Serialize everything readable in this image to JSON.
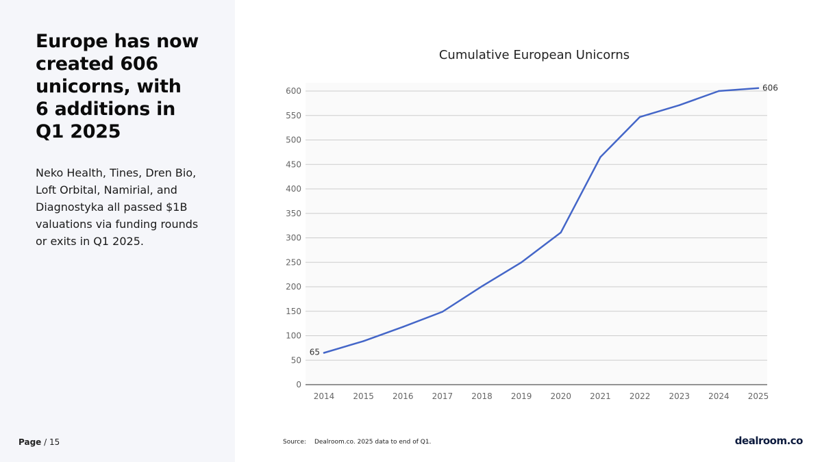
{
  "headline": "Europe has now created 606 unicorns, with 6 additions in Q1 2025",
  "body": "Neko Health, Tines, Dren Bio, Loft Orbital, Namirial, and Diagnostyka all passed $1B valuations via funding rounds or exits in Q1 2025.",
  "footer": {
    "page_word": "Page",
    "page_rest": " / 15",
    "source_label": "Source:",
    "source_text": "Dealroom.co. 2025 data to end of Q1.",
    "logo": "dealroom.co"
  },
  "colors": {
    "line": "#4466c8",
    "grid": "#cccccc",
    "axis": "#555555",
    "panel": "#f5f6fa"
  },
  "chart_data": {
    "type": "line",
    "title": "Cumulative European Unicorns",
    "x": [
      "2014",
      "2015",
      "2016",
      "2017",
      "2018",
      "2019",
      "2020",
      "2021",
      "2022",
      "2023",
      "2024",
      "2025"
    ],
    "series": [
      {
        "values": [
          65,
          89,
          118,
          149,
          201,
          250,
          311,
          465,
          547,
          571,
          600,
          606
        ]
      }
    ],
    "ylim": [
      0,
      600
    ],
    "yticks": [
      0,
      50,
      100,
      150,
      200,
      250,
      300,
      350,
      400,
      450,
      500,
      550,
      600
    ],
    "data_labels": [
      {
        "index": 0,
        "text": "65"
      },
      {
        "index": 11,
        "text": "606"
      }
    ],
    "grid": true,
    "legend": "none"
  }
}
